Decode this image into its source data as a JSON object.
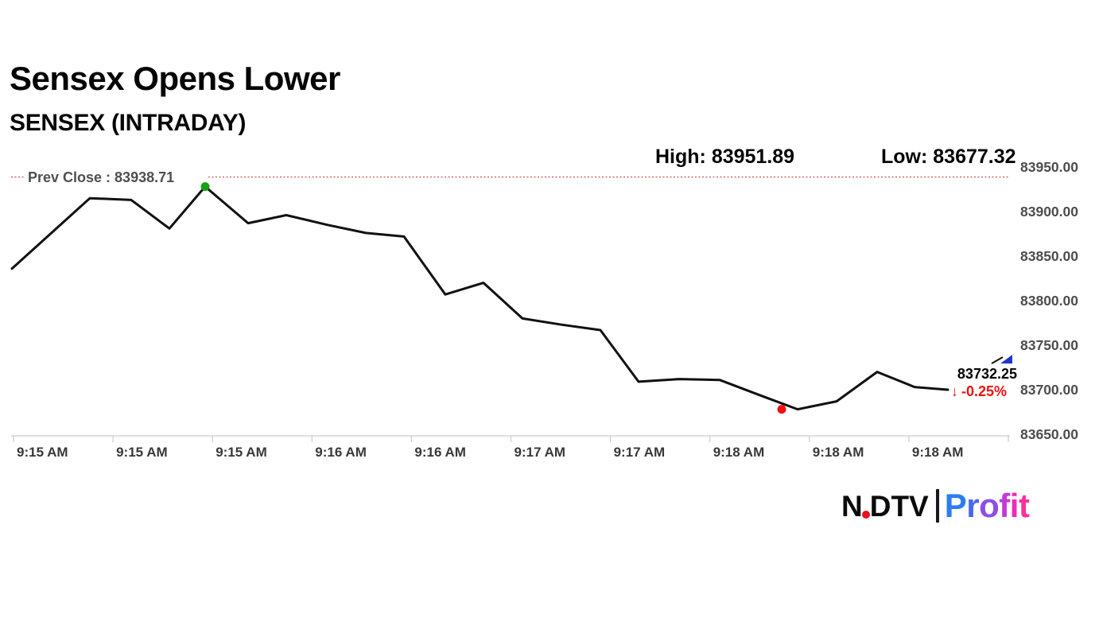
{
  "header": {
    "title": "Sensex Opens Lower",
    "subtitle": "SENSEX (INTRADAY)"
  },
  "stats": {
    "high_label": "High: 83951.89",
    "low_label": "Low: 83677.32",
    "prev_close_label": "Prev Close : 83938.71",
    "last_price": "83732.25",
    "change_pct": "-0.25%",
    "down_arrow": "↓"
  },
  "chart_data": {
    "type": "line",
    "title": "SENSEX (INTRADAY)",
    "series_name": "SENSEX",
    "high": 83951.89,
    "low": 83677.32,
    "prev_close": 83938.71,
    "last": 83732.25,
    "change_pct": -0.25,
    "y_range": [
      83650,
      83950
    ],
    "y_tick_labels": [
      "83950.00",
      "83900.00",
      "83850.00",
      "83800.00",
      "83750.00",
      "83700.00",
      "83650.00"
    ],
    "x_tick_labels": [
      "9:15 AM",
      "9:15 AM",
      "9:15 AM",
      "9:16 AM",
      "9:16 AM",
      "9:17 AM",
      "9:17 AM",
      "9:18 AM",
      "9:18 AM",
      "9:18 AM"
    ],
    "points": [
      [
        15,
        83836
      ],
      [
        113,
        83915
      ],
      [
        165,
        83913
      ],
      [
        213,
        83881
      ],
      [
        258,
        83928
      ],
      [
        312,
        83887
      ],
      [
        360,
        83896
      ],
      [
        412,
        83885
      ],
      [
        460,
        83876
      ],
      [
        508,
        83872
      ],
      [
        560,
        83807
      ],
      [
        608,
        83820
      ],
      [
        657,
        83780
      ],
      [
        706,
        83773
      ],
      [
        755,
        83767
      ],
      [
        803,
        83709
      ],
      [
        854,
        83712
      ],
      [
        905,
        83711
      ],
      [
        955,
        83694
      ],
      [
        1003,
        83678
      ],
      [
        1052,
        83687
      ],
      [
        1103,
        83720
      ],
      [
        1150,
        83703
      ],
      [
        1192,
        83700
      ]
    ],
    "high_marker_index": 4,
    "low_marker_index": 19,
    "legend": "off",
    "grid": "off",
    "colors": {
      "line": "#111111",
      "high_dot": "#16a016",
      "low_dot": "#ee1111",
      "prev_close_line": "#d25b5b",
      "axis": "#cccccc",
      "change_red": "#ee1111",
      "trend_arrow_blue": "#1f35cc"
    }
  },
  "logo": {
    "ndtv_left": "N",
    "ndtv_right": "DTV",
    "profit": "Profit",
    "profit_letter_colors": [
      "#2b7df0",
      "#4a67ee",
      "#8a4fe8",
      "#c438d8",
      "#ee2bbd",
      "#ff2f9e"
    ],
    "ndtv_dot_color": "#e8131b"
  }
}
